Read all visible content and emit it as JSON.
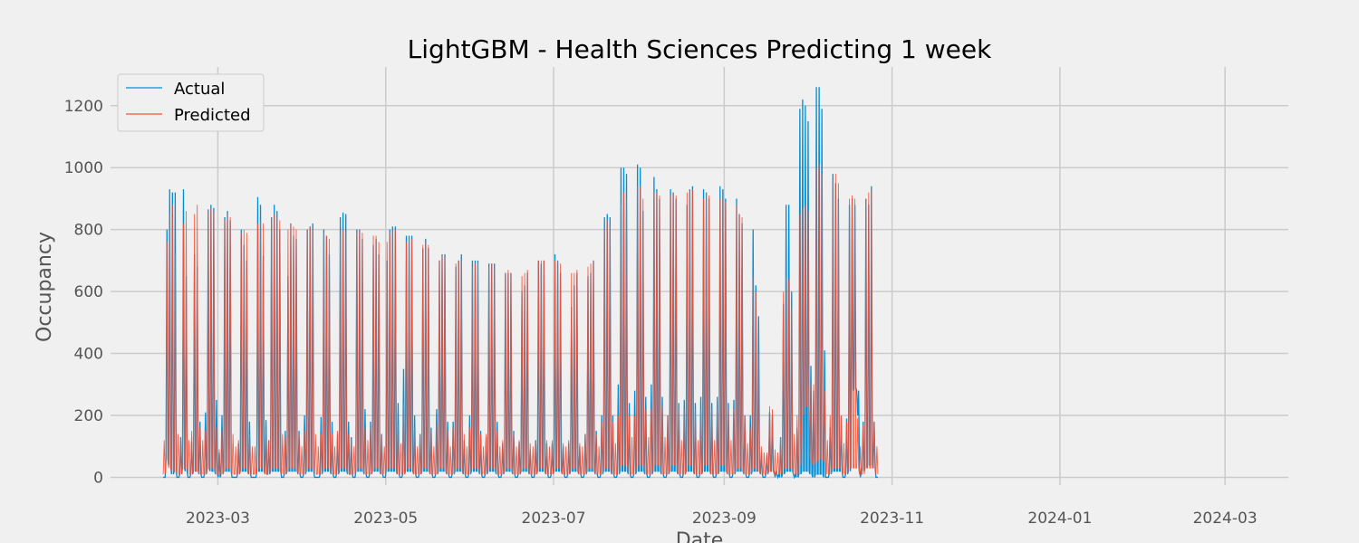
{
  "chart_data": {
    "type": "line",
    "title": "LightGBM - Health Sciences Predicting 1 week",
    "xlabel": "Date",
    "ylabel": "Occupancy",
    "xlim": [
      "2023-01-21",
      "2024-03-24"
    ],
    "ylim": [
      -25,
      1325
    ],
    "grid": true,
    "legend_position": "top-left",
    "x_ticks": [
      "2023-03",
      "2023-05",
      "2023-07",
      "2023-09",
      "2023-11",
      "2024-01",
      "2024-03"
    ],
    "x_tick_dates": [
      "2023-03-01",
      "2023-05-01",
      "2023-07-01",
      "2023-09-01",
      "2023-11-01",
      "2024-01-01",
      "2024-03-01"
    ],
    "y_ticks": [
      0,
      200,
      400,
      600,
      800,
      1000,
      1200
    ],
    "sampling": "approximate daily peaks and troughs of an hourly series",
    "series": [
      {
        "name": "Actual",
        "color": "#008fd5",
        "start_date": "2023-02-09",
        "daily_peaks": [
          0,
          800,
          930,
          920,
          920,
          0,
          130,
          930,
          650,
          0,
          115,
          720,
          680,
          180,
          0,
          210,
          865,
          880,
          870,
          250,
          80,
          200,
          840,
          860,
          830,
          0,
          0,
          110,
          800,
          750,
          700,
          180,
          0,
          0,
          905,
          880,
          715,
          185,
          120,
          840,
          880,
          860,
          800,
          0,
          150,
          650,
          820,
          780,
          770,
          150,
          0,
          200,
          800,
          810,
          820,
          0,
          0,
          195,
          800,
          780,
          720,
          180,
          0,
          140,
          840,
          855,
          850,
          180,
          130,
          0,
          800,
          800,
          770,
          220,
          0,
          180,
          750,
          770,
          720,
          140,
          0,
          700,
          800,
          810,
          810,
          240,
          0,
          350,
          780,
          780,
          780,
          200,
          0,
          140,
          740,
          770,
          740,
          160,
          0,
          220,
          700,
          720,
          720,
          180,
          0,
          180,
          680,
          700,
          720,
          120,
          0,
          200,
          700,
          700,
          700,
          150,
          0,
          130,
          690,
          690,
          690,
          180,
          0,
          110,
          660,
          660,
          660,
          150,
          0,
          115,
          600,
          620,
          660,
          90,
          0,
          120,
          700,
          690,
          700,
          110,
          0,
          110,
          720,
          700,
          660,
          100,
          0,
          110,
          550,
          620,
          660,
          100,
          0,
          140,
          650,
          660,
          700,
          150,
          0,
          200,
          840,
          850,
          840,
          200,
          0,
          300,
          1000,
          1000,
          980,
          240,
          0,
          280,
          1010,
          1000,
          860,
          260,
          0,
          300,
          970,
          930,
          900,
          260,
          0,
          200,
          930,
          920,
          900,
          240,
          0,
          250,
          880,
          930,
          940,
          240,
          0,
          260,
          930,
          920,
          900,
          240,
          0,
          260,
          940,
          930,
          900,
          240,
          0,
          250,
          900,
          850,
          820,
          200,
          0,
          200,
          800,
          620,
          520,
          80,
          0,
          70,
          210,
          200,
          0,
          0,
          130,
          560,
          880,
          880,
          600,
          0,
          160,
          1190,
          1220,
          1200,
          1150,
          360,
          280,
          1260,
          1260,
          1190,
          410,
          0,
          160,
          980,
          950,
          900,
          200,
          0,
          190,
          880,
          900,
          880,
          200,
          0,
          180,
          900,
          880,
          940,
          180,
          0
        ],
        "daily_troughs": [
          0,
          60,
          40,
          10,
          20,
          0,
          10,
          30,
          20,
          0,
          10,
          20,
          20,
          10,
          0,
          10,
          30,
          20,
          20,
          10,
          0,
          10,
          20,
          20,
          20,
          0,
          0,
          10,
          20,
          20,
          20,
          10,
          0,
          0,
          20,
          20,
          20,
          10,
          10,
          20,
          20,
          20,
          20,
          0,
          10,
          20,
          20,
          20,
          20,
          10,
          0,
          10,
          20,
          20,
          20,
          0,
          0,
          10,
          20,
          20,
          20,
          10,
          0,
          10,
          20,
          20,
          20,
          10,
          10,
          0,
          20,
          20,
          20,
          10,
          0,
          10,
          20,
          20,
          20,
          10,
          0,
          20,
          20,
          20,
          20,
          10,
          0,
          10,
          20,
          20,
          20,
          10,
          0,
          10,
          20,
          20,
          20,
          10,
          0,
          10,
          20,
          20,
          20,
          10,
          0,
          10,
          20,
          20,
          20,
          10,
          0,
          10,
          20,
          20,
          20,
          10,
          0,
          10,
          20,
          20,
          20,
          10,
          0,
          10,
          20,
          20,
          20,
          10,
          0,
          10,
          20,
          20,
          20,
          10,
          0,
          10,
          20,
          20,
          20,
          10,
          0,
          10,
          20,
          20,
          20,
          10,
          0,
          10,
          20,
          20,
          20,
          10,
          0,
          10,
          20,
          20,
          20,
          10,
          0,
          10,
          20,
          20,
          20,
          10,
          0,
          10,
          20,
          20,
          20,
          10,
          0,
          10,
          20,
          20,
          20,
          10,
          0,
          10,
          20,
          20,
          20,
          10,
          0,
          10,
          20,
          20,
          20,
          10,
          0,
          10,
          20,
          20,
          20,
          10,
          0,
          10,
          20,
          20,
          20,
          10,
          0,
          10,
          20,
          20,
          20,
          10,
          0,
          10,
          20,
          20,
          20,
          10,
          0,
          10,
          20,
          20,
          20,
          10,
          0,
          10,
          20,
          20,
          20,
          10,
          0,
          10,
          20,
          20,
          20,
          10,
          0,
          10,
          20,
          20,
          20,
          10,
          0,
          10,
          10,
          10,
          0,
          0,
          10,
          20,
          20,
          20,
          20,
          0,
          10,
          20,
          280,
          290,
          280,
          30,
          20,
          30,
          40,
          40,
          30,
          0,
          10,
          20,
          20,
          20,
          20,
          0,
          10,
          20,
          20,
          20,
          20,
          0,
          10,
          20,
          20,
          20,
          10,
          0
        ]
      },
      {
        "name": "Predicted",
        "color": "#fc4f30",
        "start_date": "2023-02-09",
        "daily_peaks": [
          120,
          760,
          850,
          880,
          720,
          140,
          130,
          820,
          860,
          120,
          150,
          850,
          880,
          160,
          120,
          150,
          860,
          870,
          860,
          160,
          90,
          150,
          830,
          850,
          840,
          140,
          100,
          120,
          790,
          800,
          790,
          140,
          100,
          100,
          820,
          830,
          820,
          150,
          120,
          840,
          850,
          840,
          830,
          140,
          130,
          800,
          820,
          810,
          800,
          140,
          100,
          150,
          800,
          810,
          800,
          140,
          100,
          140,
          790,
          780,
          770,
          140,
          100,
          150,
          780,
          800,
          790,
          140,
          120,
          100,
          790,
          800,
          790,
          160,
          120,
          160,
          780,
          780,
          760,
          140,
          100,
          760,
          790,
          800,
          800,
          170,
          110,
          240,
          760,
          770,
          770,
          160,
          100,
          140,
          750,
          760,
          750,
          150,
          100,
          170,
          700,
          720,
          710,
          150,
          100,
          160,
          690,
          700,
          700,
          140,
          100,
          160,
          680,
          690,
          690,
          140,
          100,
          140,
          680,
          690,
          680,
          150,
          100,
          120,
          660,
          670,
          660,
          140,
          100,
          120,
          650,
          660,
          670,
          110,
          100,
          120,
          700,
          700,
          700,
          120,
          100,
          120,
          700,
          700,
          690,
          110,
          100,
          120,
          660,
          660,
          670,
          110,
          100,
          140,
          680,
          690,
          700,
          140,
          100,
          180,
          800,
          830,
          810,
          180,
          110,
          200,
          880,
          920,
          900,
          200,
          130,
          200,
          940,
          940,
          900,
          220,
          130,
          220,
          920,
          920,
          910,
          230,
          130,
          200,
          910,
          920,
          910,
          220,
          120,
          220,
          920,
          930,
          930,
          220,
          120,
          220,
          900,
          920,
          910,
          220,
          120,
          220,
          900,
          900,
          890,
          220,
          120,
          220,
          880,
          850,
          840,
          200,
          110,
          160,
          650,
          600,
          400,
          100,
          80,
          80,
          230,
          220,
          90,
          80,
          130,
          600,
          650,
          640,
          550,
          140,
          200,
          850,
          870,
          880,
          860,
          300,
          300,
          1000,
          1010,
          980,
          280,
          120,
          200,
          960,
          980,
          950,
          200,
          110,
          180,
          900,
          910,
          900,
          190,
          100,
          170,
          900,
          920,
          930,
          180,
          100
        ],
        "daily_troughs": [
          10,
          50,
          30,
          20,
          20,
          10,
          10,
          30,
          30,
          10,
          10,
          20,
          20,
          10,
          10,
          10,
          30,
          30,
          30,
          10,
          10,
          10,
          30,
          30,
          30,
          10,
          10,
          10,
          30,
          30,
          30,
          10,
          10,
          10,
          30,
          30,
          30,
          10,
          10,
          30,
          30,
          30,
          30,
          10,
          10,
          30,
          30,
          30,
          30,
          10,
          10,
          10,
          30,
          30,
          30,
          10,
          10,
          10,
          30,
          30,
          30,
          10,
          10,
          10,
          30,
          30,
          30,
          10,
          10,
          10,
          30,
          30,
          30,
          10,
          10,
          10,
          30,
          30,
          30,
          10,
          10,
          30,
          30,
          30,
          30,
          10,
          10,
          10,
          30,
          30,
          30,
          10,
          10,
          10,
          30,
          30,
          30,
          10,
          10,
          10,
          30,
          30,
          30,
          10,
          10,
          10,
          30,
          30,
          30,
          10,
          10,
          10,
          30,
          30,
          30,
          10,
          10,
          10,
          30,
          30,
          30,
          10,
          10,
          10,
          30,
          30,
          30,
          10,
          10,
          10,
          30,
          30,
          30,
          10,
          10,
          10,
          30,
          30,
          30,
          10,
          10,
          10,
          30,
          30,
          30,
          10,
          10,
          10,
          30,
          30,
          30,
          10,
          10,
          10,
          30,
          30,
          30,
          10,
          10,
          10,
          30,
          30,
          30,
          10,
          10,
          10,
          40,
          40,
          40,
          10,
          10,
          10,
          40,
          40,
          40,
          10,
          10,
          10,
          40,
          40,
          40,
          10,
          10,
          10,
          40,
          40,
          40,
          10,
          10,
          10,
          40,
          40,
          40,
          10,
          10,
          10,
          40,
          40,
          40,
          10,
          10,
          10,
          40,
          40,
          40,
          10,
          10,
          10,
          30,
          30,
          30,
          10,
          10,
          10,
          30,
          30,
          20,
          10,
          10,
          10,
          20,
          20,
          10,
          10,
          10,
          30,
          30,
          30,
          30,
          10,
          10,
          40,
          200,
          230,
          230,
          60,
          40,
          50,
          60,
          60,
          50,
          10,
          10,
          30,
          30,
          30,
          30,
          10,
          10,
          30,
          30,
          30,
          30,
          10,
          10,
          30,
          30,
          30,
          30,
          10
        ]
      }
    ]
  }
}
